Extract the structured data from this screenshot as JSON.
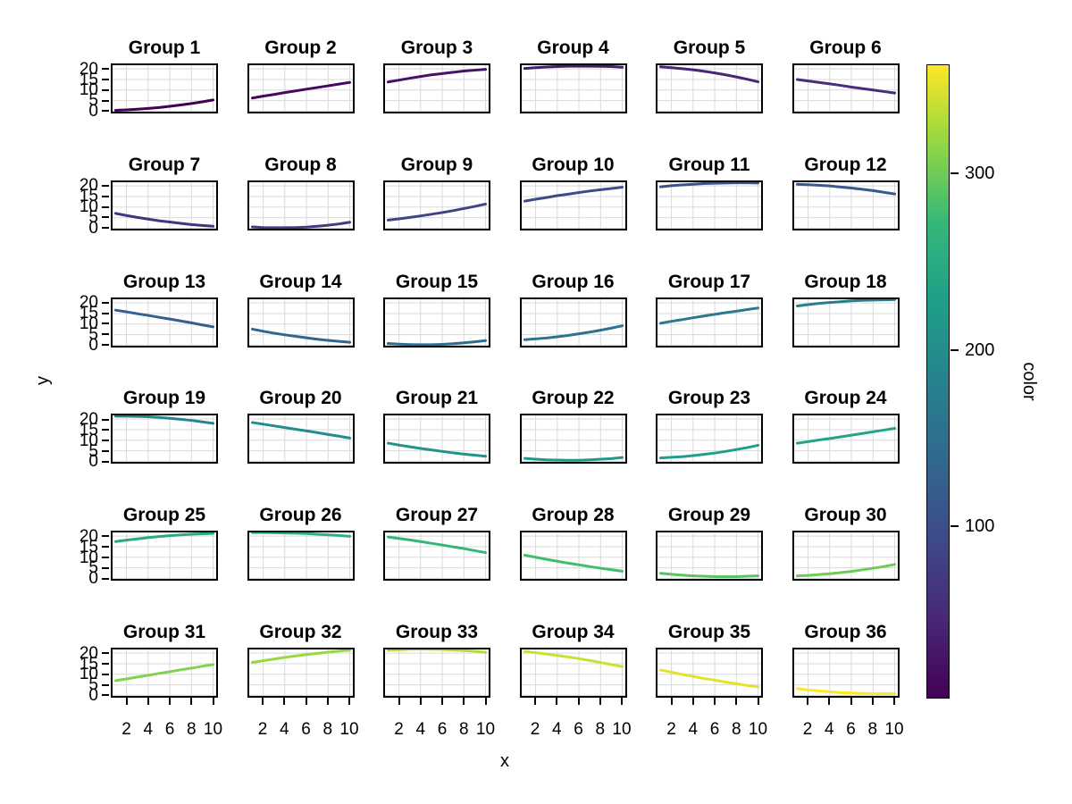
{
  "figure": {
    "background": "#ffffff",
    "text_color": "#000000",
    "gridline_color": "#d9d9d9",
    "panel_border_color": "#000000"
  },
  "axes": {
    "x_title": "x",
    "y_title": "y",
    "x_tick_labels": [
      "2",
      "4",
      "6",
      "8",
      "10"
    ],
    "y_tick_labels": [
      "20",
      "15",
      "10",
      "5",
      "0"
    ]
  },
  "colorbar": {
    "title": "color",
    "tick_labels": [
      "300",
      "200",
      "100"
    ],
    "tick_values": [
      300,
      200,
      100
    ],
    "domain": [
      2,
      362
    ],
    "gradient_stops_top_to_bottom": [
      "#fde725",
      "#90d743",
      "#35b779",
      "#1f9e89",
      "#26828e",
      "#31688e",
      "#3e4a89",
      "#482878",
      "#440154"
    ]
  },
  "chart_data": {
    "type": "line",
    "title": "",
    "xlabel": "x",
    "ylabel": "y",
    "legend_title": "color",
    "x": [
      1,
      2,
      3,
      4,
      5,
      6,
      7,
      8,
      9,
      10
    ],
    "xlim": [
      0.55,
      10.45
    ],
    "ylim": [
      -1.1,
      22.6
    ],
    "x_ticks": [
      2,
      4,
      6,
      8,
      10
    ],
    "y_ticks": [
      0,
      5,
      10,
      15,
      20
    ],
    "grid": "major-only",
    "facets": [
      {
        "label": "Group 1",
        "color": "#440154",
        "y": [
          0.4,
          0.6,
          0.9,
          1.3,
          1.7,
          2.3,
          2.9,
          3.6,
          4.4,
          5.3
        ]
      },
      {
        "label": "Group 2",
        "color": "#450a5c",
        "y": [
          6.2,
          7.1,
          7.9,
          8.8,
          9.6,
          10.4,
          11.2,
          12.0,
          12.8,
          13.6
        ]
      },
      {
        "label": "Group 3",
        "color": "#461264",
        "y": [
          13.8,
          14.7,
          15.6,
          16.4,
          17.2,
          17.8,
          18.4,
          19.0,
          19.4,
          19.8
        ]
      },
      {
        "label": "Group 4",
        "color": "#471c6d",
        "y": [
          20.2,
          20.6,
          20.9,
          21.1,
          21.3,
          21.3,
          21.3,
          21.2,
          21.1,
          20.8
        ]
      },
      {
        "label": "Group 5",
        "color": "#482575",
        "y": [
          21.0,
          20.6,
          20.1,
          19.6,
          18.9,
          18.1,
          17.2,
          16.2,
          15.1,
          13.9
        ]
      },
      {
        "label": "Group 6",
        "color": "#472d7a",
        "y": [
          15.0,
          14.3,
          13.6,
          12.9,
          12.2,
          11.4,
          10.7,
          10.0,
          9.3,
          8.6
        ]
      },
      {
        "label": "Group 7",
        "color": "#44357e",
        "y": [
          7.0,
          6.0,
          5.1,
          4.3,
          3.5,
          2.9,
          2.3,
          1.7,
          1.3,
          0.9
        ]
      },
      {
        "label": "Group 8",
        "color": "#423c82",
        "y": [
          0.6,
          0.3,
          0.2,
          0.2,
          0.3,
          0.5,
          0.9,
          1.4,
          2.0,
          2.8
        ]
      },
      {
        "label": "Group 9",
        "color": "#404486",
        "y": [
          3.8,
          4.4,
          5.1,
          5.8,
          6.6,
          7.4,
          8.3,
          9.3,
          10.3,
          11.4
        ]
      },
      {
        "label": "Group 10",
        "color": "#3d4c89",
        "y": [
          12.8,
          13.7,
          14.5,
          15.4,
          16.1,
          16.9,
          17.6,
          18.2,
          18.8,
          19.4
        ]
      },
      {
        "label": "Group 11",
        "color": "#3a538a",
        "y": [
          19.6,
          20.1,
          20.5,
          20.8,
          21.1,
          21.3,
          21.4,
          21.5,
          21.5,
          21.4
        ]
      },
      {
        "label": "Group 12",
        "color": "#37598c",
        "y": [
          20.8,
          20.6,
          20.3,
          20.0,
          19.5,
          19.0,
          18.4,
          17.8,
          17.0,
          16.2
        ]
      },
      {
        "label": "Group 13",
        "color": "#34608d",
        "y": [
          16.6,
          15.8,
          14.9,
          14.1,
          13.2,
          12.4,
          11.5,
          10.6,
          9.6,
          8.7
        ]
      },
      {
        "label": "Group 14",
        "color": "#31678e",
        "y": [
          7.6,
          6.6,
          5.7,
          4.9,
          4.2,
          3.5,
          2.8,
          2.3,
          1.8,
          1.4
        ]
      },
      {
        "label": "Group 15",
        "color": "#2f6d8e",
        "y": [
          0.8,
          0.5,
          0.3,
          0.2,
          0.2,
          0.4,
          0.7,
          1.1,
          1.6,
          2.2
        ]
      },
      {
        "label": "Group 16",
        "color": "#2c738e",
        "y": [
          2.6,
          3.0,
          3.4,
          4.0,
          4.6,
          5.4,
          6.2,
          7.1,
          8.1,
          9.2
        ]
      },
      {
        "label": "Group 17",
        "color": "#2a798e",
        "y": [
          10.4,
          11.3,
          12.1,
          13.0,
          13.8,
          14.6,
          15.4,
          16.1,
          16.9,
          17.6
        ]
      },
      {
        "label": "Group 18",
        "color": "#277f8e",
        "y": [
          18.6,
          19.2,
          19.8,
          20.2,
          20.6,
          21.0,
          21.2,
          21.4,
          21.5,
          21.6
        ]
      },
      {
        "label": "Group 19",
        "color": "#25858d",
        "y": [
          21.4,
          21.4,
          21.3,
          21.1,
          20.8,
          20.4,
          19.9,
          19.4,
          18.7,
          18.0
        ]
      },
      {
        "label": "Group 20",
        "color": "#248c8c",
        "y": [
          18.4,
          17.6,
          16.8,
          16.0,
          15.2,
          14.4,
          13.6,
          12.7,
          11.9,
          11.0
        ]
      },
      {
        "label": "Group 21",
        "color": "#22928b",
        "y": [
          8.6,
          7.7,
          6.9,
          6.1,
          5.4,
          4.7,
          4.0,
          3.4,
          2.9,
          2.4
        ]
      },
      {
        "label": "Group 22",
        "color": "#20988a",
        "y": [
          1.4,
          1.0,
          0.7,
          0.6,
          0.5,
          0.5,
          0.7,
          1.0,
          1.3,
          1.8
        ]
      },
      {
        "label": "Group 23",
        "color": "#1f9f89",
        "y": [
          1.6,
          1.9,
          2.2,
          2.7,
          3.3,
          3.9,
          4.7,
          5.6,
          6.5,
          7.6
        ]
      },
      {
        "label": "Group 24",
        "color": "#24a485",
        "y": [
          8.6,
          9.3,
          10.1,
          10.8,
          11.6,
          12.4,
          13.2,
          14.0,
          14.8,
          15.6
        ]
      },
      {
        "label": "Group 25",
        "color": "#29aa81",
        "y": [
          17.4,
          18.1,
          18.7,
          19.3,
          19.8,
          20.2,
          20.6,
          20.9,
          21.1,
          21.3
        ]
      },
      {
        "label": "Group 26",
        "color": "#2fb07e",
        "y": [
          21.7,
          21.7,
          21.6,
          21.5,
          21.4,
          21.2,
          20.9,
          20.6,
          20.3,
          19.9
        ]
      },
      {
        "label": "Group 27",
        "color": "#34b67a",
        "y": [
          19.6,
          18.9,
          18.2,
          17.4,
          16.6,
          15.8,
          14.9,
          14.1,
          13.1,
          12.2
        ]
      },
      {
        "label": "Group 28",
        "color": "#44bc70",
        "y": [
          11.0,
          10.0,
          9.0,
          8.1,
          7.2,
          6.4,
          5.6,
          4.8,
          4.1,
          3.4
        ]
      },
      {
        "label": "Group 29",
        "color": "#59c464",
        "y": [
          2.4,
          1.9,
          1.5,
          1.2,
          1.0,
          0.8,
          0.8,
          0.8,
          1.0,
          1.2
        ]
      },
      {
        "label": "Group 30",
        "color": "#6ecb57",
        "y": [
          1.2,
          1.4,
          1.8,
          2.2,
          2.7,
          3.3,
          4.0,
          4.8,
          5.6,
          6.6
        ]
      },
      {
        "label": "Group 31",
        "color": "#83d24c",
        "y": [
          7.0,
          7.8,
          8.7,
          9.5,
          10.4,
          11.2,
          12.1,
          12.9,
          13.8,
          14.6
        ]
      },
      {
        "label": "Group 32",
        "color": "#99d841",
        "y": [
          15.6,
          16.4,
          17.2,
          18.0,
          18.7,
          19.3,
          19.9,
          20.5,
          21.0,
          21.4
        ]
      },
      {
        "label": "Group 33",
        "color": "#b2dc3a",
        "y": [
          21.4,
          21.6,
          21.8,
          21.9,
          21.8,
          21.7,
          21.5,
          21.2,
          20.9,
          20.4
        ]
      },
      {
        "label": "Group 34",
        "color": "#cbe033",
        "y": [
          20.8,
          20.2,
          19.6,
          18.9,
          18.2,
          17.4,
          16.5,
          15.6,
          14.6,
          13.6
        ]
      },
      {
        "label": "Group 35",
        "color": "#e4e32c",
        "y": [
          12.0,
          11.0,
          9.9,
          9.0,
          8.0,
          7.2,
          6.3,
          5.5,
          4.7,
          4.0
        ]
      },
      {
        "label": "Group 36",
        "color": "#fde725",
        "y": [
          3.2,
          2.6,
          2.1,
          1.7,
          1.3,
          1.1,
          0.9,
          0.8,
          0.8,
          0.8
        ]
      }
    ]
  }
}
